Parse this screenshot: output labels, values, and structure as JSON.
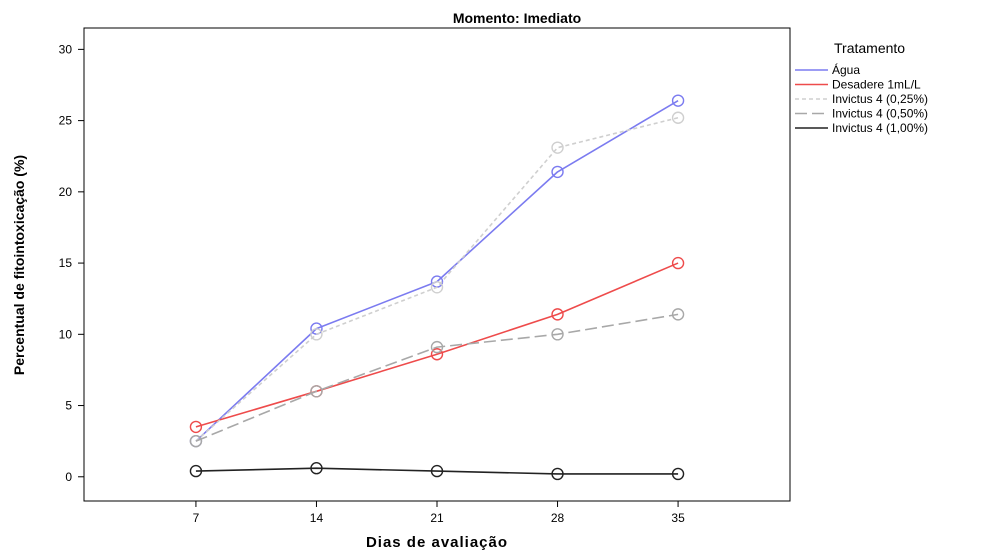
{
  "chart_data": {
    "type": "line",
    "title": "Momento: Imediato",
    "xlabel": "Dias de avaliação",
    "ylabel": "Percentual de fitointoxicação (%)",
    "x": [
      7,
      14,
      21,
      28,
      35
    ],
    "xlim": [
      0.5,
      41.5
    ],
    "ylim": [
      -1.7,
      31.5
    ],
    "yticks": [
      0,
      5,
      10,
      15,
      20,
      25,
      30
    ],
    "grid": false,
    "legend": {
      "title": "Tratamento",
      "placement": "right"
    },
    "series": [
      {
        "name": "Água",
        "values": [
          2.5,
          10.4,
          13.7,
          21.4,
          26.4
        ],
        "color": "#7b7bf0",
        "dash": "solid"
      },
      {
        "name": "Desadere 1mL/L",
        "values": [
          3.5,
          6.0,
          8.6,
          11.4,
          15.0
        ],
        "color": "#ee4b4b",
        "dash": "solid"
      },
      {
        "name": "Invictus 4 (0,25%)",
        "values": [
          2.5,
          10.0,
          13.3,
          23.1,
          25.2
        ],
        "color": "#cfcfcf",
        "dash": "dotted"
      },
      {
        "name": "Invictus 4 (0,50%)",
        "values": [
          2.5,
          6.0,
          9.1,
          10.0,
          11.4
        ],
        "color": "#a8a8a8",
        "dash": "dashed"
      },
      {
        "name": "Invictus 4 (1,00%)",
        "values": [
          0.4,
          0.6,
          0.4,
          0.2,
          0.2
        ],
        "color": "#222222",
        "dash": "solid"
      }
    ]
  }
}
